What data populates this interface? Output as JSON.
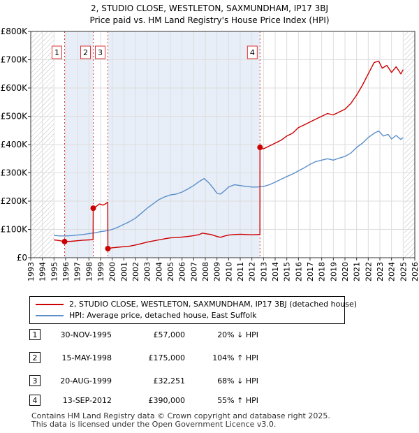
{
  "title_line1": "2, STUDIO CLOSE, WESTLETON, SAXMUNDHAM, IP17 3BJ",
  "title_line2": "Price paid vs. HM Land Registry's House Price Index (HPI)",
  "chart_data": {
    "type": "line",
    "title": "2, STUDIO CLOSE, WESTLETON, SAXMUNDHAM, IP17 3BJ — Price paid vs. HM Land Registry's House Price Index (HPI)",
    "xlim": [
      1993,
      2026
    ],
    "ylim": [
      0,
      800000
    ],
    "x_ticks": [
      "1993",
      "1994",
      "1995",
      "1996",
      "1997",
      "1998",
      "1999",
      "2000",
      "2001",
      "2002",
      "2003",
      "2004",
      "2005",
      "2006",
      "2007",
      "2008",
      "2009",
      "2010",
      "2011",
      "2012",
      "2013",
      "2014",
      "2015",
      "2016",
      "2017",
      "2018",
      "2019",
      "2020",
      "2021",
      "2022",
      "2023",
      "2024",
      "2025",
      "2026"
    ],
    "y_ticks": [
      {
        "value": 0,
        "label": "£0"
      },
      {
        "value": 100000,
        "label": "£100K"
      },
      {
        "value": 200000,
        "label": "£200K"
      },
      {
        "value": 300000,
        "label": "£300K"
      },
      {
        "value": 400000,
        "label": "£400K"
      },
      {
        "value": 500000,
        "label": "£500K"
      },
      {
        "value": 600000,
        "label": "£600K"
      },
      {
        "value": 700000,
        "label": "£700K"
      },
      {
        "value": 800000,
        "label": "£800K"
      }
    ],
    "hatched_ranges": [
      [
        1993,
        1995
      ],
      [
        2025.1,
        2026
      ]
    ],
    "series": [
      {
        "name": "2, STUDIO CLOSE, WESTLETON, SAXMUNDHAM, IP17 3BJ (detached house)",
        "color": "#cc0000",
        "points": [
          [
            1995.0,
            63000
          ],
          [
            1995.4,
            61000
          ],
          [
            1995.91,
            57000
          ],
          [
            1996.5,
            58000
          ],
          [
            1997.0,
            60000
          ],
          [
            1997.5,
            62000
          ],
          [
            1998.0,
            63000
          ],
          [
            1998.36,
            64000
          ],
          [
            1998.37,
            175000
          ],
          [
            1998.6,
            180000
          ],
          [
            1998.9,
            190000
          ],
          [
            1999.2,
            186000
          ],
          [
            1999.4,
            190000
          ],
          [
            1999.62,
            196000
          ],
          [
            1999.63,
            32251
          ],
          [
            2000.0,
            35000
          ],
          [
            2000.5,
            37000
          ],
          [
            2001.0,
            39000
          ],
          [
            2001.5,
            41000
          ],
          [
            2002.0,
            45000
          ],
          [
            2002.5,
            50000
          ],
          [
            2003.0,
            55000
          ],
          [
            2003.5,
            59000
          ],
          [
            2004.0,
            63000
          ],
          [
            2004.5,
            67000
          ],
          [
            2005.0,
            70000
          ],
          [
            2005.5,
            71000
          ],
          [
            2006.0,
            73000
          ],
          [
            2006.5,
            75000
          ],
          [
            2007.0,
            78000
          ],
          [
            2007.5,
            82000
          ],
          [
            2007.75,
            87000
          ],
          [
            2008.0,
            85000
          ],
          [
            2008.5,
            82000
          ],
          [
            2009.0,
            75000
          ],
          [
            2009.3,
            72000
          ],
          [
            2009.6,
            76000
          ],
          [
            2010.0,
            80000
          ],
          [
            2010.5,
            82000
          ],
          [
            2011.0,
            83000
          ],
          [
            2011.5,
            82000
          ],
          [
            2012.0,
            81000
          ],
          [
            2012.5,
            82000
          ],
          [
            2012.69,
            82000
          ],
          [
            2012.7,
            390000
          ],
          [
            2013.0,
            385000
          ],
          [
            2013.5,
            395000
          ],
          [
            2014.0,
            405000
          ],
          [
            2014.5,
            415000
          ],
          [
            2015.0,
            430000
          ],
          [
            2015.5,
            440000
          ],
          [
            2016.0,
            460000
          ],
          [
            2016.5,
            470000
          ],
          [
            2017.0,
            480000
          ],
          [
            2017.5,
            490000
          ],
          [
            2018.0,
            500000
          ],
          [
            2018.5,
            510000
          ],
          [
            2019.0,
            505000
          ],
          [
            2019.5,
            515000
          ],
          [
            2020.0,
            525000
          ],
          [
            2020.5,
            545000
          ],
          [
            2021.0,
            575000
          ],
          [
            2021.5,
            610000
          ],
          [
            2022.0,
            650000
          ],
          [
            2022.5,
            690000
          ],
          [
            2022.9,
            695000
          ],
          [
            2023.2,
            670000
          ],
          [
            2023.6,
            680000
          ],
          [
            2024.0,
            655000
          ],
          [
            2024.4,
            675000
          ],
          [
            2024.8,
            650000
          ],
          [
            2025.0,
            665000
          ]
        ]
      },
      {
        "name": "HPI: Average price, detached house, East Suffolk",
        "color": "#5b8fc9",
        "points": [
          [
            1995.0,
            79000
          ],
          [
            1995.5,
            77000
          ],
          [
            1996.0,
            77000
          ],
          [
            1996.5,
            78000
          ],
          [
            1997.0,
            80000
          ],
          [
            1997.5,
            82000
          ],
          [
            1998.0,
            85000
          ],
          [
            1998.5,
            88000
          ],
          [
            1999.0,
            92000
          ],
          [
            1999.5,
            95000
          ],
          [
            2000.0,
            100000
          ],
          [
            2000.5,
            108000
          ],
          [
            2001.0,
            118000
          ],
          [
            2001.5,
            128000
          ],
          [
            2002.0,
            140000
          ],
          [
            2002.5,
            157000
          ],
          [
            2003.0,
            175000
          ],
          [
            2003.5,
            190000
          ],
          [
            2004.0,
            205000
          ],
          [
            2004.5,
            215000
          ],
          [
            2005.0,
            222000
          ],
          [
            2005.5,
            225000
          ],
          [
            2006.0,
            232000
          ],
          [
            2006.5,
            243000
          ],
          [
            2007.0,
            255000
          ],
          [
            2007.5,
            270000
          ],
          [
            2007.9,
            280000
          ],
          [
            2008.3,
            265000
          ],
          [
            2008.7,
            245000
          ],
          [
            2009.0,
            228000
          ],
          [
            2009.3,
            225000
          ],
          [
            2009.7,
            238000
          ],
          [
            2010.0,
            250000
          ],
          [
            2010.5,
            258000
          ],
          [
            2011.0,
            255000
          ],
          [
            2011.5,
            252000
          ],
          [
            2012.0,
            250000
          ],
          [
            2012.5,
            250000
          ],
          [
            2013.0,
            252000
          ],
          [
            2013.5,
            258000
          ],
          [
            2014.0,
            267000
          ],
          [
            2014.5,
            277000
          ],
          [
            2015.0,
            287000
          ],
          [
            2015.5,
            296000
          ],
          [
            2016.0,
            307000
          ],
          [
            2016.5,
            318000
          ],
          [
            2017.0,
            330000
          ],
          [
            2017.5,
            340000
          ],
          [
            2018.0,
            345000
          ],
          [
            2018.5,
            350000
          ],
          [
            2019.0,
            345000
          ],
          [
            2019.5,
            352000
          ],
          [
            2020.0,
            358000
          ],
          [
            2020.5,
            370000
          ],
          [
            2021.0,
            390000
          ],
          [
            2021.5,
            405000
          ],
          [
            2022.0,
            425000
          ],
          [
            2022.5,
            440000
          ],
          [
            2022.9,
            448000
          ],
          [
            2023.3,
            430000
          ],
          [
            2023.7,
            436000
          ],
          [
            2024.0,
            420000
          ],
          [
            2024.4,
            432000
          ],
          [
            2024.8,
            418000
          ],
          [
            2025.0,
            425000
          ]
        ]
      }
    ],
    "sale_markers": [
      {
        "label": "1",
        "x": 1995.91,
        "y": 57000
      },
      {
        "label": "2",
        "x": 1998.37,
        "y": 175000
      },
      {
        "label": "3",
        "x": 1999.63,
        "y": 32251
      },
      {
        "label": "4",
        "x": 2012.7,
        "y": 390000
      }
    ]
  },
  "legend": {
    "property_label": "2, STUDIO CLOSE, WESTLETON, SAXMUNDHAM, IP17 3BJ (detached house)",
    "property_color": "#cc0000",
    "hpi_label": "HPI: Average price, detached house, East Suffolk",
    "hpi_color": "#5b8fc9"
  },
  "sales": [
    {
      "num": "1",
      "date": "30-NOV-1995",
      "price": "£57,000",
      "hpi": "20% ↓ HPI"
    },
    {
      "num": "2",
      "date": "15-MAY-1998",
      "price": "£175,000",
      "hpi": "104% ↑ HPI"
    },
    {
      "num": "3",
      "date": "20-AUG-1999",
      "price": "£32,251",
      "hpi": "68% ↓ HPI"
    },
    {
      "num": "4",
      "date": "13-SEP-2012",
      "price": "£390,000",
      "hpi": "55% ↑ HPI"
    }
  ],
  "footer_line1": "Contains HM Land Registry data © Crown copyright and database right 2025.",
  "footer_line2": "This data is licensed under the Open Government Licence v3.0."
}
